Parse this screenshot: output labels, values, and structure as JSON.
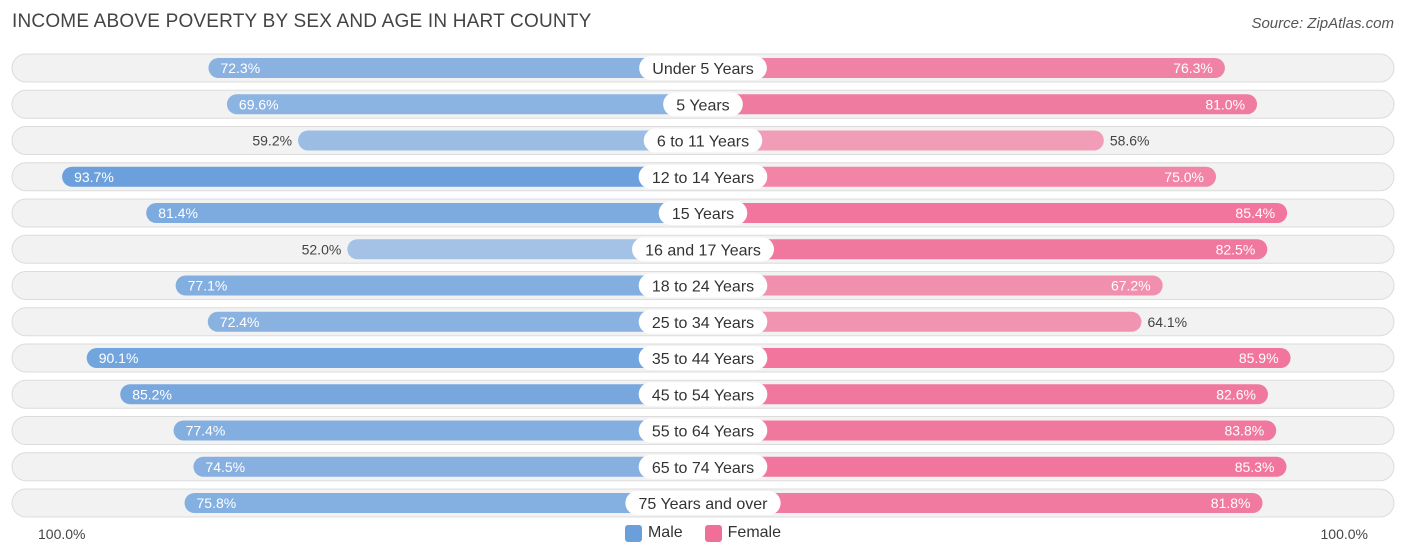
{
  "title": "INCOME ABOVE POVERTY BY SEX AND AGE IN HART COUNTY",
  "source": "Source: ZipAtlas.com",
  "axis": {
    "left_label": "100.0%",
    "right_label": "100.0%"
  },
  "legend": [
    {
      "name": "Male",
      "color": "#6a9fdc"
    },
    {
      "name": "Female",
      "color": "#f06e98"
    }
  ],
  "chart_data": {
    "type": "bar",
    "orientation": "horizontal-diverging",
    "categories": [
      "Under 5 Years",
      "5 Years",
      "6 to 11 Years",
      "12 to 14 Years",
      "15 Years",
      "16 and 17 Years",
      "18 to 24 Years",
      "25 to 34 Years",
      "35 to 44 Years",
      "45 to 54 Years",
      "55 to 64 Years",
      "65 to 74 Years",
      "75 Years and over"
    ],
    "series": [
      {
        "name": "Male",
        "values": [
          72.3,
          69.6,
          59.2,
          93.7,
          81.4,
          52.0,
          77.1,
          72.4,
          90.1,
          85.2,
          77.4,
          74.5,
          75.8
        ]
      },
      {
        "name": "Female",
        "values": [
          76.3,
          81.0,
          58.6,
          75.0,
          85.4,
          82.5,
          67.2,
          64.1,
          85.9,
          82.6,
          83.8,
          85.3,
          81.8
        ]
      }
    ],
    "labels_male": [
      "72.3%",
      "69.6%",
      "59.2%",
      "93.7%",
      "81.4%",
      "52.0%",
      "77.1%",
      "72.4%",
      "90.1%",
      "85.2%",
      "77.4%",
      "74.5%",
      "75.8%"
    ],
    "labels_female": [
      "76.3%",
      "81.0%",
      "58.6%",
      "75.0%",
      "85.4%",
      "82.5%",
      "67.2%",
      "64.1%",
      "85.9%",
      "82.6%",
      "83.8%",
      "85.3%",
      "81.8%"
    ],
    "xlim": [
      0,
      100
    ],
    "legend_position": "bottom-center",
    "colors": {
      "male": "#6a9fdc",
      "female": "#f06e98"
    }
  }
}
